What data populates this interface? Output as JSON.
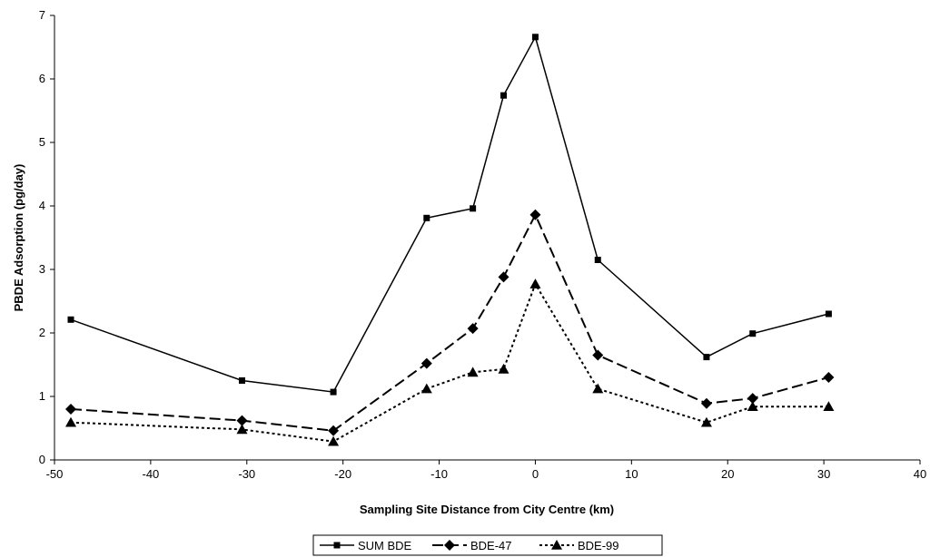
{
  "chart_data": {
    "type": "line",
    "xlabel": "Sampling Site Distance from City Centre (km)",
    "ylabel": "PBDE Adsorption (pg/day)",
    "xlim": [
      -50,
      40
    ],
    "ylim": [
      0,
      7
    ],
    "xticks": [
      -50,
      -40,
      -30,
      -20,
      -10,
      0,
      10,
      20,
      30,
      40
    ],
    "yticks": [
      0,
      1,
      2,
      3,
      4,
      5,
      6,
      7
    ],
    "grid": false,
    "legend_position": "bottom-center",
    "series": [
      {
        "name": "SUM BDE",
        "marker": "square",
        "line_style": "solid",
        "color": "#000000",
        "points": [
          {
            "x": -48.3,
            "y": 2.21
          },
          {
            "x": -30.5,
            "y": 1.25
          },
          {
            "x": -21.0,
            "y": 1.07
          },
          {
            "x": -11.3,
            "y": 3.81
          },
          {
            "x": -6.5,
            "y": 3.96
          },
          {
            "x": -3.3,
            "y": 5.74
          },
          {
            "x": 0.0,
            "y": 6.66
          },
          {
            "x": 6.5,
            "y": 3.15
          },
          {
            "x": 17.8,
            "y": 1.62
          },
          {
            "x": 22.6,
            "y": 1.99
          },
          {
            "x": 30.5,
            "y": 2.3
          }
        ]
      },
      {
        "name": "BDE-47",
        "marker": "diamond",
        "line_style": "dashed",
        "color": "#000000",
        "points": [
          {
            "x": -48.3,
            "y": 0.8
          },
          {
            "x": -30.5,
            "y": 0.62
          },
          {
            "x": -21.0,
            "y": 0.46
          },
          {
            "x": -11.3,
            "y": 1.52
          },
          {
            "x": -6.5,
            "y": 2.07
          },
          {
            "x": -3.3,
            "y": 2.88
          },
          {
            "x": 0.0,
            "y": 3.86
          },
          {
            "x": 6.5,
            "y": 1.65
          },
          {
            "x": 17.8,
            "y": 0.89
          },
          {
            "x": 22.6,
            "y": 0.97
          },
          {
            "x": 30.5,
            "y": 1.3
          }
        ]
      },
      {
        "name": "BDE-99",
        "marker": "triangle",
        "line_style": "dotted",
        "color": "#000000",
        "points": [
          {
            "x": -48.3,
            "y": 0.59
          },
          {
            "x": -30.5,
            "y": 0.48
          },
          {
            "x": -21.0,
            "y": 0.29
          },
          {
            "x": -11.3,
            "y": 1.12
          },
          {
            "x": -6.5,
            "y": 1.38
          },
          {
            "x": -3.3,
            "y": 1.43
          },
          {
            "x": 0.0,
            "y": 2.77
          },
          {
            "x": 6.5,
            "y": 1.12
          },
          {
            "x": 17.8,
            "y": 0.59
          },
          {
            "x": 22.6,
            "y": 0.84
          },
          {
            "x": 30.5,
            "y": 0.84
          }
        ]
      }
    ]
  }
}
